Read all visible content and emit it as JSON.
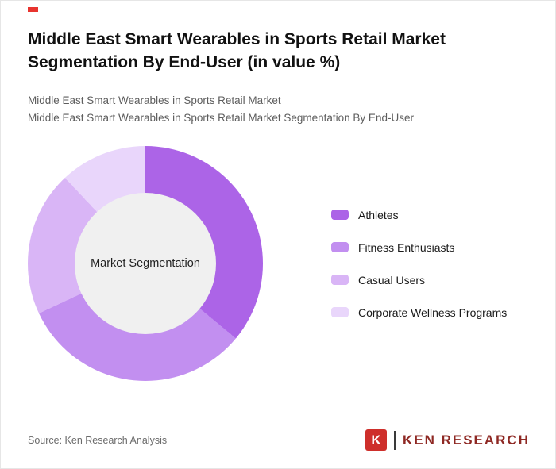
{
  "colors": {
    "accent": "#e8342f",
    "logo_red": "#ce2f2b",
    "logo_text": "#8e2823"
  },
  "header": {
    "title": "Middle East Smart Wearables in Sports Retail Market Segmentation By End-User (in value %)",
    "subtitle_line1": "Middle East Smart Wearables in Sports Retail Market",
    "subtitle_line2": "Middle East Smart Wearables in Sports Retail Market Segmentation By End-User"
  },
  "chart_data": {
    "type": "pie",
    "variant": "donut",
    "title": "Middle East Smart Wearables in Sports Retail Market Segmentation By End-User (in value %)",
    "unit": "value %",
    "center_label": "Market Segmentation",
    "categories": [
      "Athletes",
      "Fitness Enthusiasts",
      "Casual Users",
      "Corporate Wellness Programs"
    ],
    "values": [
      36,
      32,
      20,
      12
    ],
    "colors": [
      "#ac64e7",
      "#c28ff0",
      "#d9b5f6",
      "#e9d6fb"
    ],
    "inner_circle_color": "#f0f0f0",
    "legend_position": "right",
    "start_angle_deg": 0,
    "direction": "clockwise"
  },
  "footer": {
    "source": "Source: Ken Research Analysis",
    "logo_letter": "K",
    "logo_text": "KEN RESEARCH"
  }
}
